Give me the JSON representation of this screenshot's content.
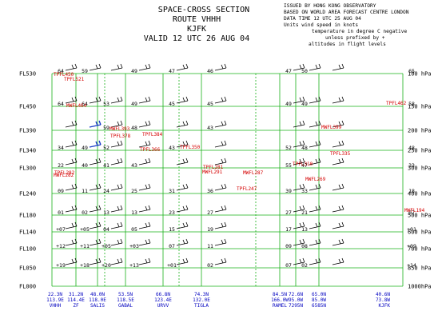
{
  "title": {
    "line1": "SPACE-CROSS SECTION",
    "line2": "ROUTE VHHH",
    "line3": "KJFK",
    "line4": "VALID 12 UTC 26 AUG 04"
  },
  "info": [
    "ISSUED BY HONG KONG OBSERVATORY",
    "BASED ON WORLD AREA FORECAST CENTRE LONDON",
    "DATA TIME 12 UTC 25 AUG 04",
    "Units wind speed in knots",
    "temperature in degree C negative",
    "unless prefixed by +",
    "altitudes in flight levels"
  ],
  "chart_data": {
    "type": "cross-section",
    "levels": [
      {
        "fl": "FL530",
        "hpa": "100 hPa"
      },
      {
        "fl": "FL450",
        "hpa": "150 hPa"
      },
      {
        "fl": "FL390",
        "hpa": "200 hPa"
      },
      {
        "fl": "FL340",
        "hpa": "250 hPa"
      },
      {
        "fl": "FL300",
        "hpa": "300 hPa"
      },
      {
        "fl": "FL240",
        "hpa": "400 hPa"
      },
      {
        "fl": "FL180",
        "hpa": "500 hPa"
      },
      {
        "fl": "FL140",
        "hpa": "600 hPa"
      },
      {
        "fl": "FL100",
        "hpa": "700 hPa"
      },
      {
        "fl": "FL050",
        "hpa": "850 hPa"
      },
      {
        "fl": "FL000",
        "hpa": "1000hPa"
      }
    ],
    "stations": [
      {
        "lat": "22.3N",
        "lon": "113.9E",
        "name": "VHHH"
      },
      {
        "lat": "31.2N",
        "lon": "114.4E",
        "name": "ZF"
      },
      {
        "lat": "48.0N",
        "lon": "118.0E",
        "name": "SALIS"
      },
      {
        "lat": "53.5N",
        "lon": "118.5E",
        "name": "GABAL"
      },
      {
        "lat": "66.8N",
        "lon": "123.4E",
        "name": "URVV"
      },
      {
        "lat": "74.3N",
        "lon": "132.0E",
        "name": "TIGLA"
      },
      {
        "lat": "84.5N",
        "lon": "166.0W",
        "name": "RAMEL"
      },
      {
        "lat": "72.6N",
        "lon": "95.0W",
        "name": "7295N"
      },
      {
        "lat": "65.0N",
        "lon": "85.0W",
        "name": "6585N"
      },
      {
        "lat": "40.6N",
        "lon": "73.8W",
        "name": "KJFK"
      }
    ],
    "temperatures": [
      {
        "level": "FL530",
        "col": 0,
        "value": "64"
      },
      {
        "level": "FL530",
        "col": 1,
        "value": "59"
      },
      {
        "level": "FL530",
        "col": 3,
        "value": "49"
      },
      {
        "level": "FL530",
        "col": 4,
        "value": "47"
      },
      {
        "level": "FL530",
        "col": 5,
        "value": "46"
      },
      {
        "level": "FL530",
        "col": 6,
        "value": "47"
      },
      {
        "level": "FL530",
        "col": 7,
        "value": "50"
      },
      {
        "level": "FL530",
        "col": 9,
        "value": "65"
      },
      {
        "level": "FL450",
        "col": 0,
        "value": "64"
      },
      {
        "level": "FL450",
        "col": 1,
        "value": "64"
      },
      {
        "level": "FL450",
        "col": 2,
        "value": "53"
      },
      {
        "level": "FL450",
        "col": 3,
        "value": "49"
      },
      {
        "level": "FL450",
        "col": 4,
        "value": "45"
      },
      {
        "level": "FL450",
        "col": 5,
        "value": "45"
      },
      {
        "level": "FL450",
        "col": 6,
        "value": "49"
      },
      {
        "level": "FL450",
        "col": 7,
        "value": "49"
      },
      {
        "level": "FL450",
        "col": 9,
        "value": "58"
      },
      {
        "level": "FL390",
        "col": 2,
        "value": "59"
      },
      {
        "level": "FL390",
        "col": 3,
        "value": "48"
      },
      {
        "level": "FL390",
        "col": 5,
        "value": "43"
      },
      {
        "level": "FL340",
        "col": 0,
        "value": "34"
      },
      {
        "level": "FL340",
        "col": 1,
        "value": "49"
      },
      {
        "level": "FL340",
        "col": 2,
        "value": "52"
      },
      {
        "level": "FL340",
        "col": 4,
        "value": "43"
      },
      {
        "level": "FL340",
        "col": 6,
        "value": "52"
      },
      {
        "level": "FL340",
        "col": 7,
        "value": "48"
      },
      {
        "level": "FL340",
        "col": 9,
        "value": "48"
      },
      {
        "level": "FL300",
        "col": 0,
        "value": "22"
      },
      {
        "level": "FL300",
        "col": 1,
        "value": "40"
      },
      {
        "level": "FL300",
        "col": 2,
        "value": "41"
      },
      {
        "level": "FL300",
        "col": 3,
        "value": "43"
      },
      {
        "level": "FL300",
        "col": 6,
        "value": "55"
      },
      {
        "level": "FL300",
        "col": 7,
        "value": "47"
      },
      {
        "level": "FL300",
        "col": 9,
        "value": "33"
      },
      {
        "level": "FL240",
        "col": 0,
        "value": "09"
      },
      {
        "level": "FL240",
        "col": 1,
        "value": "11"
      },
      {
        "level": "FL240",
        "col": 2,
        "value": "24"
      },
      {
        "level": "FL240",
        "col": 3,
        "value": "25"
      },
      {
        "level": "FL240",
        "col": 4,
        "value": "31"
      },
      {
        "level": "FL240",
        "col": 5,
        "value": "36"
      },
      {
        "level": "FL240",
        "col": 6,
        "value": "39"
      },
      {
        "level": "FL240",
        "col": 7,
        "value": "33"
      },
      {
        "level": "FL240",
        "col": 9,
        "value": "18"
      },
      {
        "level": "FL180",
        "col": 0,
        "value": "01"
      },
      {
        "level": "FL180",
        "col": 1,
        "value": "02"
      },
      {
        "level": "FL180",
        "col": 2,
        "value": "13"
      },
      {
        "level": "FL180",
        "col": 3,
        "value": "13"
      },
      {
        "level": "FL180",
        "col": 4,
        "value": "23"
      },
      {
        "level": "FL180",
        "col": 5,
        "value": "27"
      },
      {
        "level": "FL180",
        "col": 6,
        "value": "27"
      },
      {
        "level": "FL180",
        "col": 7,
        "value": "21"
      },
      {
        "level": "FL180",
        "col": 9,
        "value": "07"
      },
      {
        "level": "FL140",
        "col": 0,
        "value": "+07"
      },
      {
        "level": "FL140",
        "col": 1,
        "value": "+05"
      },
      {
        "level": "FL140",
        "col": 2,
        "value": "04"
      },
      {
        "level": "FL140",
        "col": 3,
        "value": "05"
      },
      {
        "level": "FL140",
        "col": 4,
        "value": "15"
      },
      {
        "level": "FL140",
        "col": 5,
        "value": "19"
      },
      {
        "level": "FL140",
        "col": 6,
        "value": "17"
      },
      {
        "level": "FL140",
        "col": 7,
        "value": "13"
      },
      {
        "level": "FL140",
        "col": 9,
        "value": "+01"
      },
      {
        "level": "FL100",
        "col": 0,
        "value": "+12"
      },
      {
        "level": "FL100",
        "col": 1,
        "value": "+11"
      },
      {
        "level": "FL100",
        "col": 2,
        "value": "+05"
      },
      {
        "level": "FL100",
        "col": 3,
        "value": "+03"
      },
      {
        "level": "FL100",
        "col": 4,
        "value": "07"
      },
      {
        "level": "FL100",
        "col": 5,
        "value": "11"
      },
      {
        "level": "FL100",
        "col": 6,
        "value": "09"
      },
      {
        "level": "FL100",
        "col": 7,
        "value": "08"
      },
      {
        "level": "FL100",
        "col": 9,
        "value": "+09"
      },
      {
        "level": "FL050",
        "col": 0,
        "value": "+19"
      },
      {
        "level": "FL050",
        "col": 1,
        "value": "+18"
      },
      {
        "level": "FL050",
        "col": 2,
        "value": "+20"
      },
      {
        "level": "FL050",
        "col": 3,
        "value": "+13"
      },
      {
        "level": "FL050",
        "col": 4,
        "value": "+01"
      },
      {
        "level": "FL050",
        "col": 5,
        "value": "02"
      },
      {
        "level": "FL050",
        "col": 6,
        "value": "07"
      },
      {
        "level": "FL050",
        "col": 7,
        "value": "02"
      },
      {
        "level": "FL050",
        "col": 9,
        "value": "+14"
      }
    ],
    "tropopause_labels": [
      "TPFL450",
      "TPFL521",
      "TPFL462",
      "MWFL464",
      "MWFL393",
      "TPFL378",
      "TPFL384",
      "MWFL399",
      "TPFL366",
      "TPFL350",
      "TPFL335",
      "TPFL282",
      "MWFL282",
      "TPFL281",
      "MWFL291",
      "MWFL287",
      "TPFL310",
      "MWFL269",
      "TPFL247",
      "MWFL194"
    ]
  }
}
